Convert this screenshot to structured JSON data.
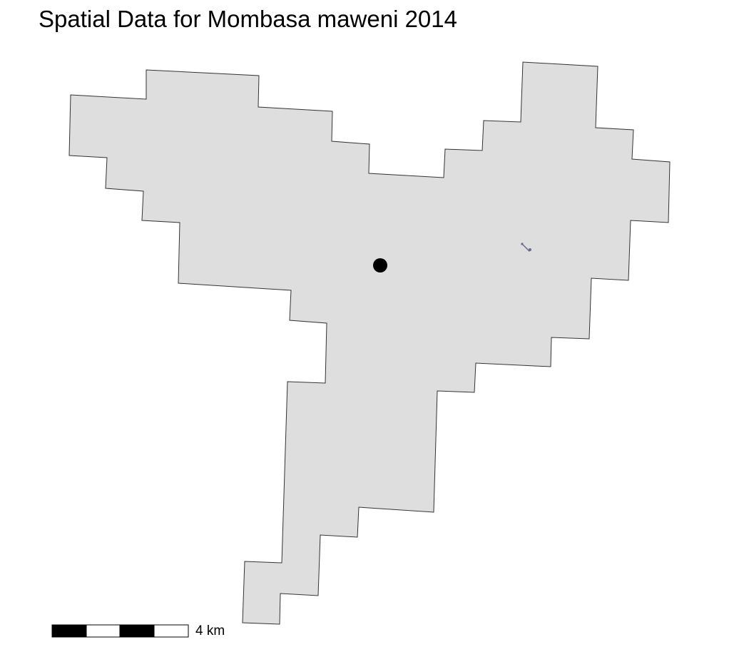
{
  "map": {
    "title": "Spatial Data for Mombasa maweni 2014",
    "region_fill": "#dedede",
    "region_stroke": "#333333",
    "marker_color": "#000000",
    "small_feature_color": "#6a6a8a"
  },
  "scale_bar": {
    "label": "4 km",
    "segment_colors": [
      "#000000",
      "#ffffff",
      "#000000",
      "#ffffff"
    ]
  }
}
